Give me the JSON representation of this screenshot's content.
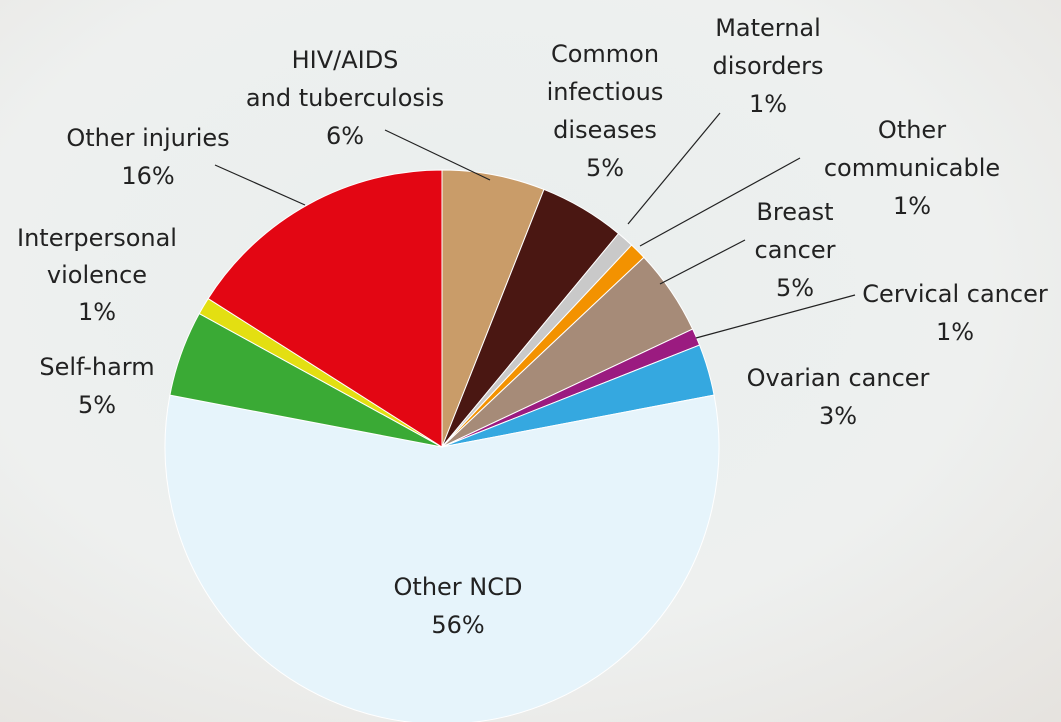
{
  "chart_data": {
    "type": "pie",
    "categories": [
      [
        "HIV/AIDS",
        "and tuberculosis"
      ],
      [
        "Common",
        "infectious",
        "diseases"
      ],
      [
        "Maternal",
        "disorders"
      ],
      [
        "Other",
        "communicable"
      ],
      [
        "Breast",
        "cancer"
      ],
      [
        "Cervical cancer"
      ],
      [
        "Ovarian cancer"
      ],
      [
        "Other NCD"
      ],
      [
        "Self-harm"
      ],
      [
        "Interpersonal",
        "violence"
      ],
      [
        "Other injuries"
      ]
    ],
    "values": [
      6,
      5,
      1,
      1,
      5,
      1,
      3,
      56,
      5,
      1,
      16
    ],
    "value_labels": [
      "6%",
      "5%",
      "1%",
      "1%",
      "5%",
      "1%",
      "3%",
      "56%",
      "5%",
      "1%",
      "16%"
    ],
    "colors": [
      "#c99c69",
      "#4a1712",
      "#c9c9c9",
      "#f39200",
      "#a68b78",
      "#9b1b80",
      "#35a8e0",
      "#e6f4fb",
      "#3aaa35",
      "#e3df12",
      "#e30613"
    ]
  }
}
